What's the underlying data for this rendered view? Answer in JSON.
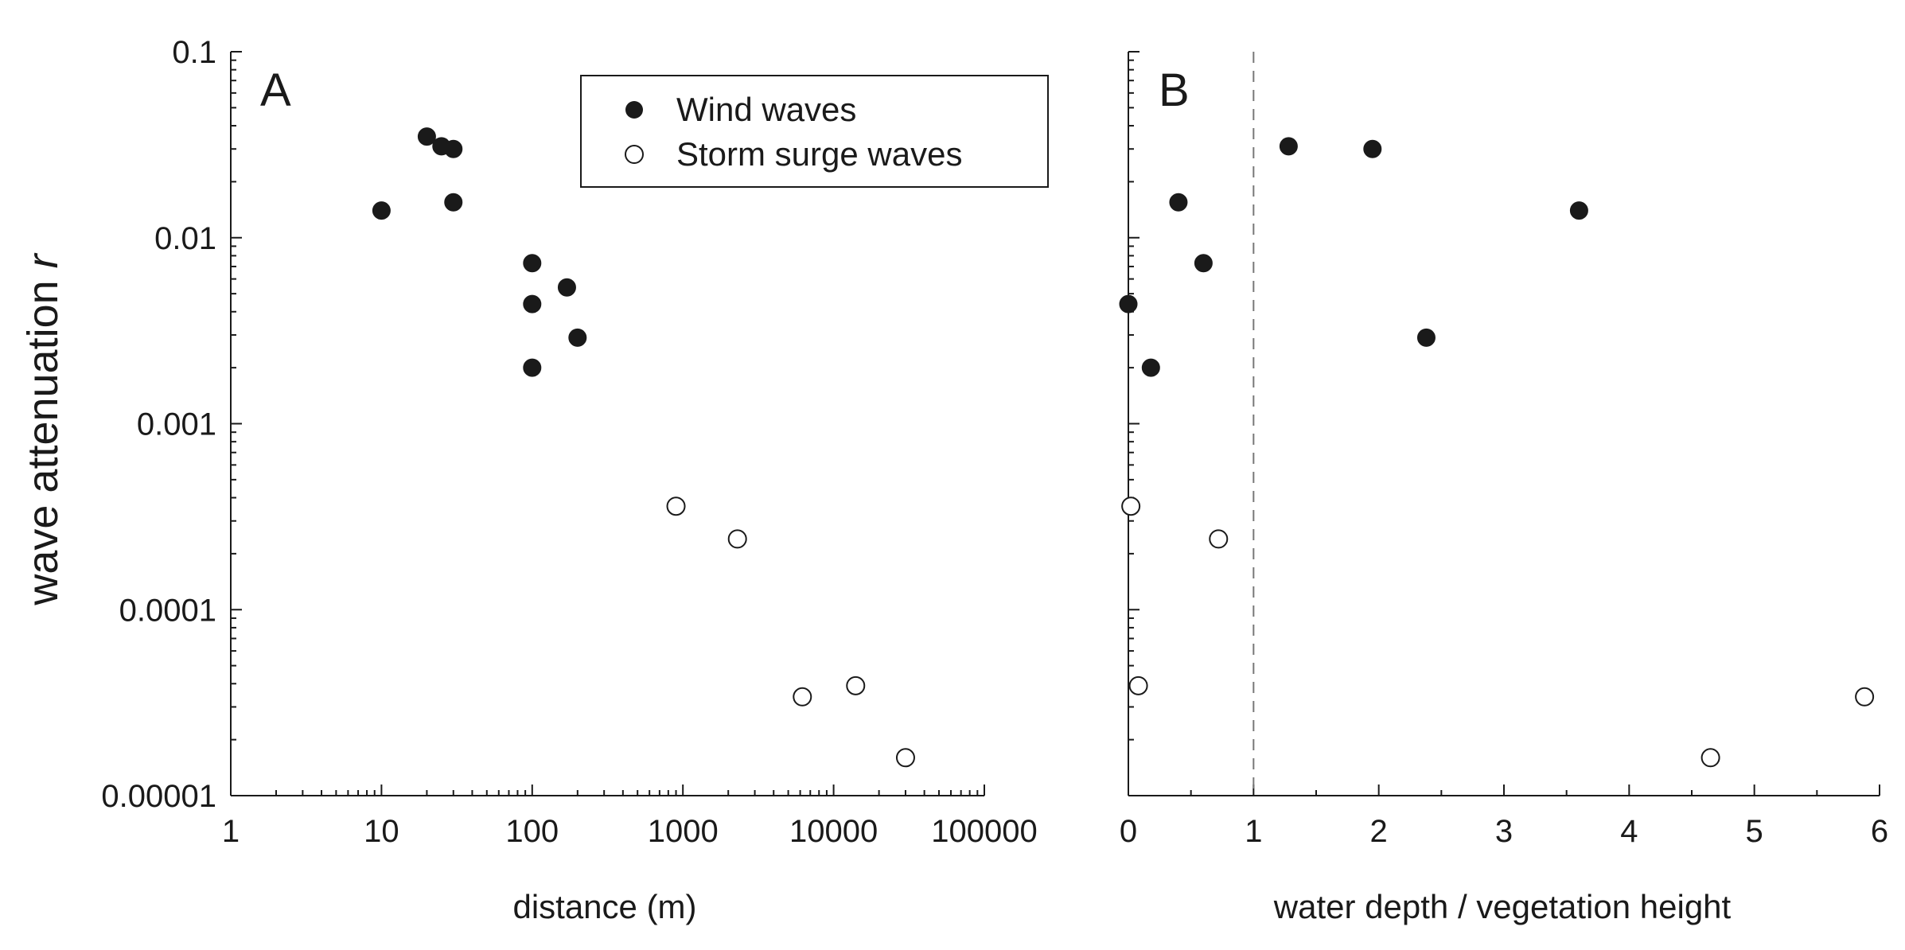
{
  "chart_data": [
    {
      "panel": "A",
      "type": "scatter",
      "xscale": "log",
      "yscale": "log",
      "xlabel": "distance (m)",
      "ylabel": "wave attenuation r",
      "xlim": [
        1,
        100000
      ],
      "ylim": [
        1e-05,
        0.1
      ],
      "xticks": [
        "1",
        "10",
        "100",
        "1000",
        "10000",
        "100000"
      ],
      "yticks": [
        "0.00001",
        "0.0001",
        "0.001",
        "0.01",
        "0.1"
      ],
      "legend_position": "top-right",
      "series": [
        {
          "name": "Wind waves",
          "marker": "filled",
          "x": [
            10,
            20,
            25,
            30,
            30,
            100,
            100,
            100,
            170,
            200
          ],
          "y": [
            0.014,
            0.035,
            0.031,
            0.03,
            0.0155,
            0.0073,
            0.0044,
            0.002,
            0.0054,
            0.0029
          ]
        },
        {
          "name": "Storm surge waves",
          "marker": "open",
          "x": [
            900,
            2300,
            6200,
            14000,
            30000
          ],
          "y": [
            0.00036,
            0.00024,
            3.4e-05,
            3.9e-05,
            1.6e-05
          ]
        }
      ]
    },
    {
      "panel": "B",
      "type": "scatter",
      "xscale": "linear",
      "yscale": "log",
      "xlabel": "water depth / vegetation height",
      "xlim": [
        0,
        6
      ],
      "ylim": [
        1e-05,
        0.1
      ],
      "xticks": [
        "0",
        "1",
        "2",
        "3",
        "4",
        "5",
        "6"
      ],
      "reference_line": {
        "x": 1,
        "style": "dashed"
      },
      "series": [
        {
          "name": "Wind waves",
          "marker": "filled",
          "x": [
            0.0,
            0.18,
            0.4,
            0.6,
            1.28,
            1.95,
            2.38,
            3.6
          ],
          "y": [
            0.0044,
            0.002,
            0.0155,
            0.0073,
            0.031,
            0.03,
            0.0029,
            0.014
          ]
        },
        {
          "name": "Storm surge waves",
          "marker": "open",
          "x": [
            0.02,
            0.08,
            0.72,
            4.65,
            5.88
          ],
          "y": [
            0.00036,
            3.9e-05,
            0.00024,
            1.6e-05,
            3.4e-05
          ]
        }
      ]
    }
  ]
}
